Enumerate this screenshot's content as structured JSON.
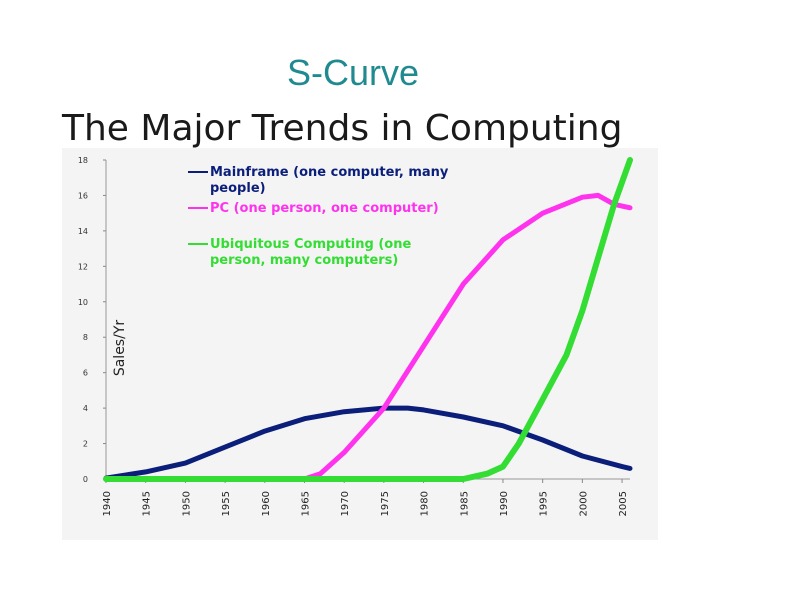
{
  "slide": {
    "title": "S-Curve",
    "heading": "The Major Trends in Computing"
  },
  "colors": {
    "mainframe": "#0b1f7a",
    "pc": "#ff33ee",
    "ubiquitous": "#33dd33",
    "background": "#f4f4f4"
  },
  "chart_data": {
    "type": "line",
    "ylabel": "Sales/Yr",
    "xlabel": "",
    "xlim": [
      1940,
      2006
    ],
    "ylim": [
      0,
      18
    ],
    "yticks": [
      0,
      2,
      4,
      6,
      8,
      10,
      12,
      14,
      16,
      18
    ],
    "xticks": [
      1940,
      1945,
      1950,
      1955,
      1960,
      1965,
      1970,
      1975,
      1980,
      1985,
      1990,
      1995,
      2000,
      2005
    ],
    "grid": false,
    "legend_position": "top-center",
    "series": [
      {
        "name": "Mainframe (one computer, many people)",
        "legend_lines": [
          "Mainframe (one computer, many",
          "people)"
        ],
        "color": "#0b1f7a",
        "x": [
          1940,
          1945,
          1950,
          1955,
          1960,
          1965,
          1970,
          1975,
          1978,
          1980,
          1985,
          1990,
          1995,
          2000,
          2005,
          2006
        ],
        "y": [
          0.05,
          0.4,
          0.9,
          1.8,
          2.7,
          3.4,
          3.8,
          4.0,
          4.0,
          3.9,
          3.5,
          3.0,
          2.2,
          1.3,
          0.7,
          0.6
        ]
      },
      {
        "name": "PC (one person, one computer)",
        "legend_lines": [
          "PC (one person, one computer)"
        ],
        "color": "#ff33ee",
        "x": [
          1940,
          1965,
          1967,
          1970,
          1975,
          1980,
          1985,
          1990,
          1995,
          2000,
          2002,
          2004,
          2006
        ],
        "y": [
          0,
          0,
          0.3,
          1.5,
          4.0,
          7.5,
          11.0,
          13.5,
          15.0,
          15.9,
          16.0,
          15.5,
          15.3
        ]
      },
      {
        "name": "Ubiquitous Computing (one person, many computers)",
        "legend_lines": [
          "Ubiquitous Computing (one",
          "person, many computers)"
        ],
        "color": "#33dd33",
        "x": [
          1940,
          1985,
          1988,
          1990,
          1992,
          1995,
          1998,
          2000,
          2002,
          2004,
          2006
        ],
        "y": [
          0,
          0,
          0.3,
          0.7,
          2.0,
          4.5,
          7.0,
          9.5,
          12.5,
          15.5,
          18.0
        ]
      }
    ]
  }
}
